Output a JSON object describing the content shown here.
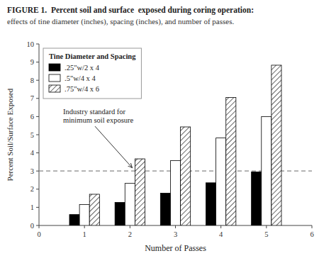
{
  "chart_data": {
    "type": "bar",
    "title": "FIGURE 1.  Percent soil and surface  exposed during coring operation:",
    "subtitle": "effects of tine diameter (inches), spacing (inches), and number of passes.",
    "xlabel": "Number of Passes",
    "ylabel": "Percent Soil/Surface Exposed",
    "x": [
      1,
      2,
      3,
      4,
      5
    ],
    "series": [
      {
        "name": ".25\"w/2 x 4",
        "color": "#000000",
        "values": [
          0.6,
          1.27,
          1.78,
          2.35,
          2.95
        ]
      },
      {
        "name": ".5\"w/4 x 4",
        "color": "#ffffff",
        "values": [
          1.15,
          2.32,
          3.57,
          4.82,
          6.0
        ]
      },
      {
        "name": ".75\"w/4 x 6",
        "color": "#ffffff",
        "values": [
          1.72,
          3.67,
          5.43,
          7.05,
          8.83
        ]
      }
    ],
    "xlim": [
      0,
      6
    ],
    "xticks": [
      0,
      1,
      2,
      3,
      4,
      5,
      6
    ],
    "ylim": [
      0,
      10
    ],
    "yticks": [
      0,
      1,
      2,
      3,
      4,
      5,
      6,
      7,
      8,
      9,
      10
    ],
    "grid": false,
    "legend": "upper left",
    "legend_title": "Tine Diameter and Spacing",
    "reference_lines": [
      {
        "y": 3.0,
        "line_style": "dashed"
      }
    ],
    "annotations": [
      {
        "text": "Industry standard for\nminimum soil exposure",
        "x": 2.05,
        "y": 3.1
      }
    ]
  }
}
